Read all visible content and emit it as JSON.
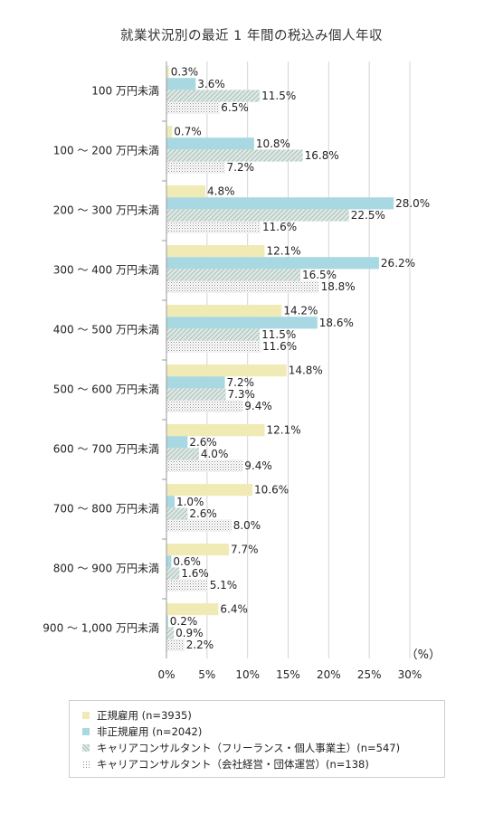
{
  "chart_data": {
    "type": "bar",
    "orientation": "horizontal",
    "title": "就業状況別の最近 1 年間の税込み個人年収",
    "unit_label": "（%）",
    "xlim": [
      0,
      30
    ],
    "x_ticks": [
      "0%",
      "5%",
      "10%",
      "15%",
      "20%",
      "25%",
      "30%"
    ],
    "x_tick_values": [
      0,
      5,
      10,
      15,
      20,
      25,
      30
    ],
    "grid": true,
    "legend_position": "bottom",
    "categories": [
      "100 万円未満",
      "100 ～ 200 万円未満",
      "200 ～ 300 万円未満",
      "300 ～ 400 万円未満",
      "400 ～ 500 万円未満",
      "500 ～ 600 万円未満",
      "600 ～ 700 万円未満",
      "700 ～ 800 万円未満",
      "800 ～ 900 万円未満",
      "900 ～ 1,000 万円未満"
    ],
    "series": [
      {
        "name": "正規雇用 (n=3935)",
        "color": "#f0eab4",
        "pattern": "solid",
        "values": [
          0.3,
          0.7,
          4.8,
          12.1,
          14.2,
          14.8,
          12.1,
          10.6,
          7.7,
          6.4
        ],
        "labels": [
          "0.3%",
          "0.7%",
          "4.8%",
          "12.1%",
          "14.2%",
          "14.8%",
          "12.1%",
          "10.6%",
          "7.7%",
          "6.4%"
        ]
      },
      {
        "name": "非正規雇用 (n=2042)",
        "color": "#a8d8e2",
        "pattern": "solid",
        "values": [
          3.6,
          10.8,
          28.0,
          26.2,
          18.6,
          7.2,
          2.6,
          1.0,
          0.6,
          0.2
        ],
        "labels": [
          "3.6%",
          "10.8%",
          "28.0%",
          "26.2%",
          "18.6%",
          "7.2%",
          "2.6%",
          "1.0%",
          "0.6%",
          "0.2%"
        ]
      },
      {
        "name": "キャリアコンサルタント（フリーランス・個人事業主）(n=547)",
        "color": "#b9cfc8",
        "pattern": "diagonal",
        "values": [
          11.5,
          16.8,
          22.5,
          16.5,
          11.5,
          7.3,
          4.0,
          2.6,
          1.6,
          0.9
        ],
        "labels": [
          "11.5%",
          "16.8%",
          "22.5%",
          "16.5%",
          "11.5%",
          "7.3%",
          "4.0%",
          "2.6%",
          "1.6%",
          "0.9%"
        ]
      },
      {
        "name": "キャリアコンサルタント（会社経営・団体運営）(n=138)",
        "color": "#9a9a9a",
        "pattern": "dotted",
        "values": [
          6.5,
          7.2,
          11.6,
          18.8,
          11.6,
          9.4,
          9.4,
          8.0,
          5.1,
          2.2
        ],
        "labels": [
          "6.5%",
          "7.2%",
          "11.6%",
          "18.8%",
          "11.6%",
          "9.4%",
          "9.4%",
          "8.0%",
          "5.1%",
          "2.2%"
        ]
      }
    ]
  }
}
